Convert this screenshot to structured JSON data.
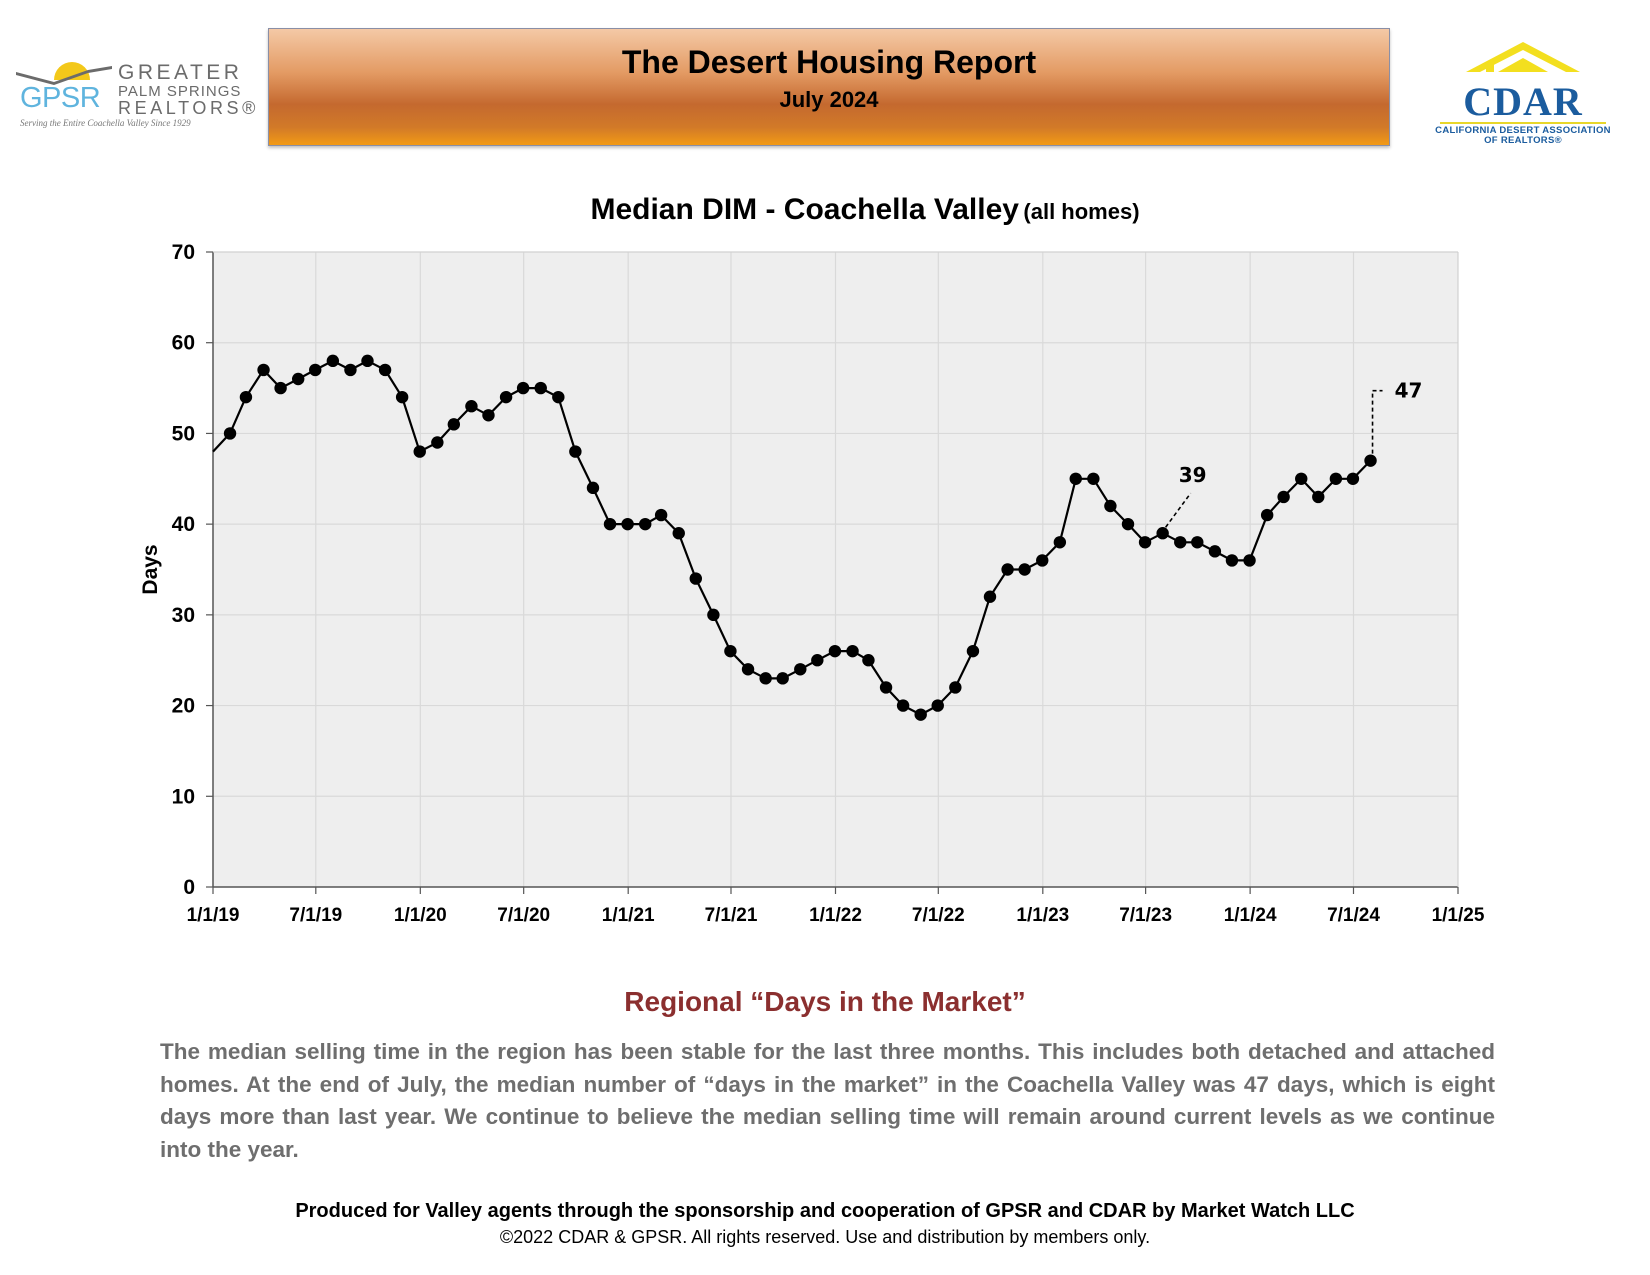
{
  "header": {
    "report_title": "The Desert Housing Report",
    "report_date": "July 2024"
  },
  "gpsr_logo": {
    "mark": "GPSR",
    "line1": "GREATER",
    "line2": "PALM SPRINGS",
    "line3": "REALTORS®",
    "tagline": "Serving the Entire Coachella Valley Since 1929",
    "colors": {
      "mark": "#5fb4de",
      "text": "#6b6b6b",
      "sun": "#f3c81a"
    }
  },
  "cdar_logo": {
    "word": "CDAR",
    "full_name_line1": "CALIFORNIA DESERT ASSOCIATION",
    "full_name_line2": "OF REALTORS®",
    "colors": {
      "word": "#1b5c9e",
      "roof": "#f3df1f"
    }
  },
  "chart_title": {
    "main": "Median DIM - Coachella Valley",
    "sub": "(all homes)"
  },
  "chart_data": {
    "type": "line",
    "title": "Median DIM - Coachella Valley (all homes)",
    "xlabel": "",
    "ylabel": "Days",
    "ylim": [
      0,
      70
    ],
    "yticks": [
      "0",
      "10",
      "20",
      "30",
      "40",
      "50",
      "60",
      "70"
    ],
    "xlim": [
      "2019-01-01",
      "2025-01-01"
    ],
    "xticks": [
      "1/1/19",
      "7/1/19",
      "1/1/20",
      "7/1/20",
      "1/1/21",
      "7/1/21",
      "1/1/22",
      "7/1/22",
      "1/1/23",
      "7/1/23",
      "1/1/24",
      "7/1/24",
      "1/1/25"
    ],
    "grid": true,
    "line_start": {
      "x": "2019-01-01",
      "y": 48
    },
    "series": [
      {
        "marker": "circle",
        "x": [
          "2019-01-31",
          "2019-02-28",
          "2019-03-31",
          "2019-04-30",
          "2019-05-31",
          "2019-06-30",
          "2019-07-31",
          "2019-08-31",
          "2019-09-30",
          "2019-10-31",
          "2019-11-30",
          "2019-12-31",
          "2020-01-31",
          "2020-02-29",
          "2020-03-31",
          "2020-04-30",
          "2020-05-31",
          "2020-06-30",
          "2020-07-31",
          "2020-08-31",
          "2020-09-30",
          "2020-10-31",
          "2020-11-30",
          "2020-12-31",
          "2021-01-31",
          "2021-02-28",
          "2021-03-31",
          "2021-04-30",
          "2021-05-31",
          "2021-06-30",
          "2021-07-31",
          "2021-08-31",
          "2021-09-30",
          "2021-10-31",
          "2021-11-30",
          "2021-12-31",
          "2022-01-31",
          "2022-02-28",
          "2022-03-31",
          "2022-04-30",
          "2022-05-31",
          "2022-06-30",
          "2022-07-31",
          "2022-08-31",
          "2022-09-30",
          "2022-10-31",
          "2022-11-30",
          "2022-12-31",
          "2023-01-31",
          "2023-02-28",
          "2023-03-31",
          "2023-04-30",
          "2023-05-31",
          "2023-06-30",
          "2023-07-31",
          "2023-08-31",
          "2023-09-30",
          "2023-10-31",
          "2023-11-30",
          "2023-12-31",
          "2024-01-31",
          "2024-02-29",
          "2024-03-31",
          "2024-04-30",
          "2024-05-31",
          "2024-06-30",
          "2024-07-31"
        ],
        "values": [
          50,
          54,
          57,
          55,
          56,
          57,
          58,
          57,
          58,
          57,
          54,
          48,
          49,
          51,
          53,
          52,
          54,
          55,
          55,
          54,
          48,
          44,
          40,
          40,
          40,
          41,
          39,
          34,
          30,
          26,
          24,
          23,
          23,
          24,
          25,
          26,
          26,
          25,
          22,
          20,
          19,
          20,
          22,
          26,
          32,
          35,
          35,
          36,
          38,
          45,
          45,
          42,
          40,
          38,
          39,
          38,
          38,
          37,
          36,
          36,
          41,
          43,
          45,
          43,
          45,
          45,
          47
        ]
      }
    ],
    "annotations": [
      {
        "text": "39",
        "x": "2023-07-31",
        "y": 39
      },
      {
        "text": "47",
        "x": "2024-07-31",
        "y": 47
      }
    ],
    "colors": {
      "line": "#000000",
      "marker": "#000000",
      "plot_bg": "#eeeeee",
      "grid": "#d9d9d9"
    }
  },
  "section": {
    "heading": "Regional “Days in the Market”",
    "body": "The median selling time in the region has been stable for the last three months. This includes both detached and attached homes. At the end of July, the median number of “days in the market” in the Coachella Valley was 47 days, which is eight days more than last year. We continue to believe the median selling time will remain around current levels as we continue into the year.",
    "heading_color": "#8b2f2f"
  },
  "footer": {
    "line1": "Produced for Valley agents through the sponsorship and cooperation of GPSR and CDAR by Market Watch LLC",
    "line2": "©2022 CDAR & GPSR.  All rights reserved.  Use and distribution by members only."
  }
}
